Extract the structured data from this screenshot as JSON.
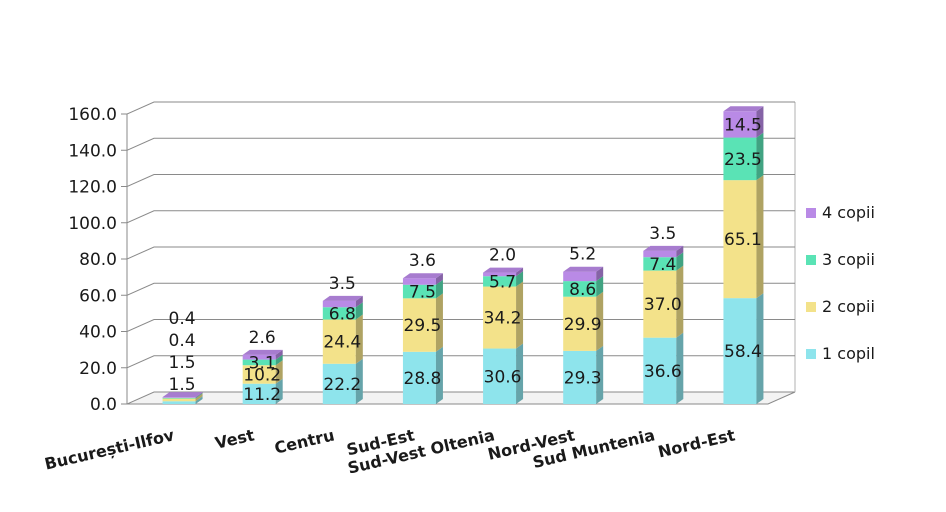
{
  "chart_data": {
    "type": "bar",
    "stacked": true,
    "three_d": true,
    "title": "",
    "xlabel": "",
    "ylabel": "",
    "ylim": [
      0,
      160
    ],
    "yticks": [
      "0.0",
      "20.0",
      "40.0",
      "60.0",
      "80.0",
      "100.0",
      "120.0",
      "140.0",
      "160.0"
    ],
    "grid": true,
    "legend_position": "right",
    "categories": [
      "București-Ilfov",
      "Vest",
      "Centru",
      "Sud-Est",
      "Sud-Vest Oltenia",
      "Nord-Vest",
      "Sud Muntenia",
      "Nord-Est"
    ],
    "series": [
      {
        "name": "1 copil",
        "color": "#8ee4ec",
        "values": [
          1.5,
          11.2,
          22.2,
          28.8,
          30.6,
          29.3,
          36.6,
          58.4
        ],
        "labels": [
          "1.5",
          "11.2",
          "22.2",
          "28.8",
          "30.6",
          "29.3",
          "36.6",
          "58.4"
        ]
      },
      {
        "name": "2 copii",
        "color": "#f3e28a",
        "values": [
          1.5,
          10.2,
          24.4,
          29.5,
          34.2,
          29.9,
          37.0,
          65.1
        ],
        "labels": [
          "1.5",
          "10.2",
          "24.4",
          "29.5",
          "34.2",
          "29.9",
          "37.0",
          "65.1"
        ]
      },
      {
        "name": "3 copii",
        "color": "#5ae3b5",
        "values": [
          0.4,
          3.1,
          6.8,
          7.5,
          5.7,
          8.6,
          7.4,
          23.5
        ],
        "labels": [
          "0.4",
          "3.1",
          "6.8",
          "7.5",
          "5.7",
          "8.6",
          "7.4",
          "23.5"
        ]
      },
      {
        "name": "4 copii",
        "color": "#b98ae6",
        "values": [
          0.4,
          2.6,
          3.5,
          3.6,
          2.0,
          5.2,
          3.5,
          14.5
        ],
        "labels": [
          "0.4",
          "2.6",
          "3.5",
          "3.6",
          "2.0",
          "5.2",
          "3.5",
          "14.5"
        ]
      }
    ]
  }
}
